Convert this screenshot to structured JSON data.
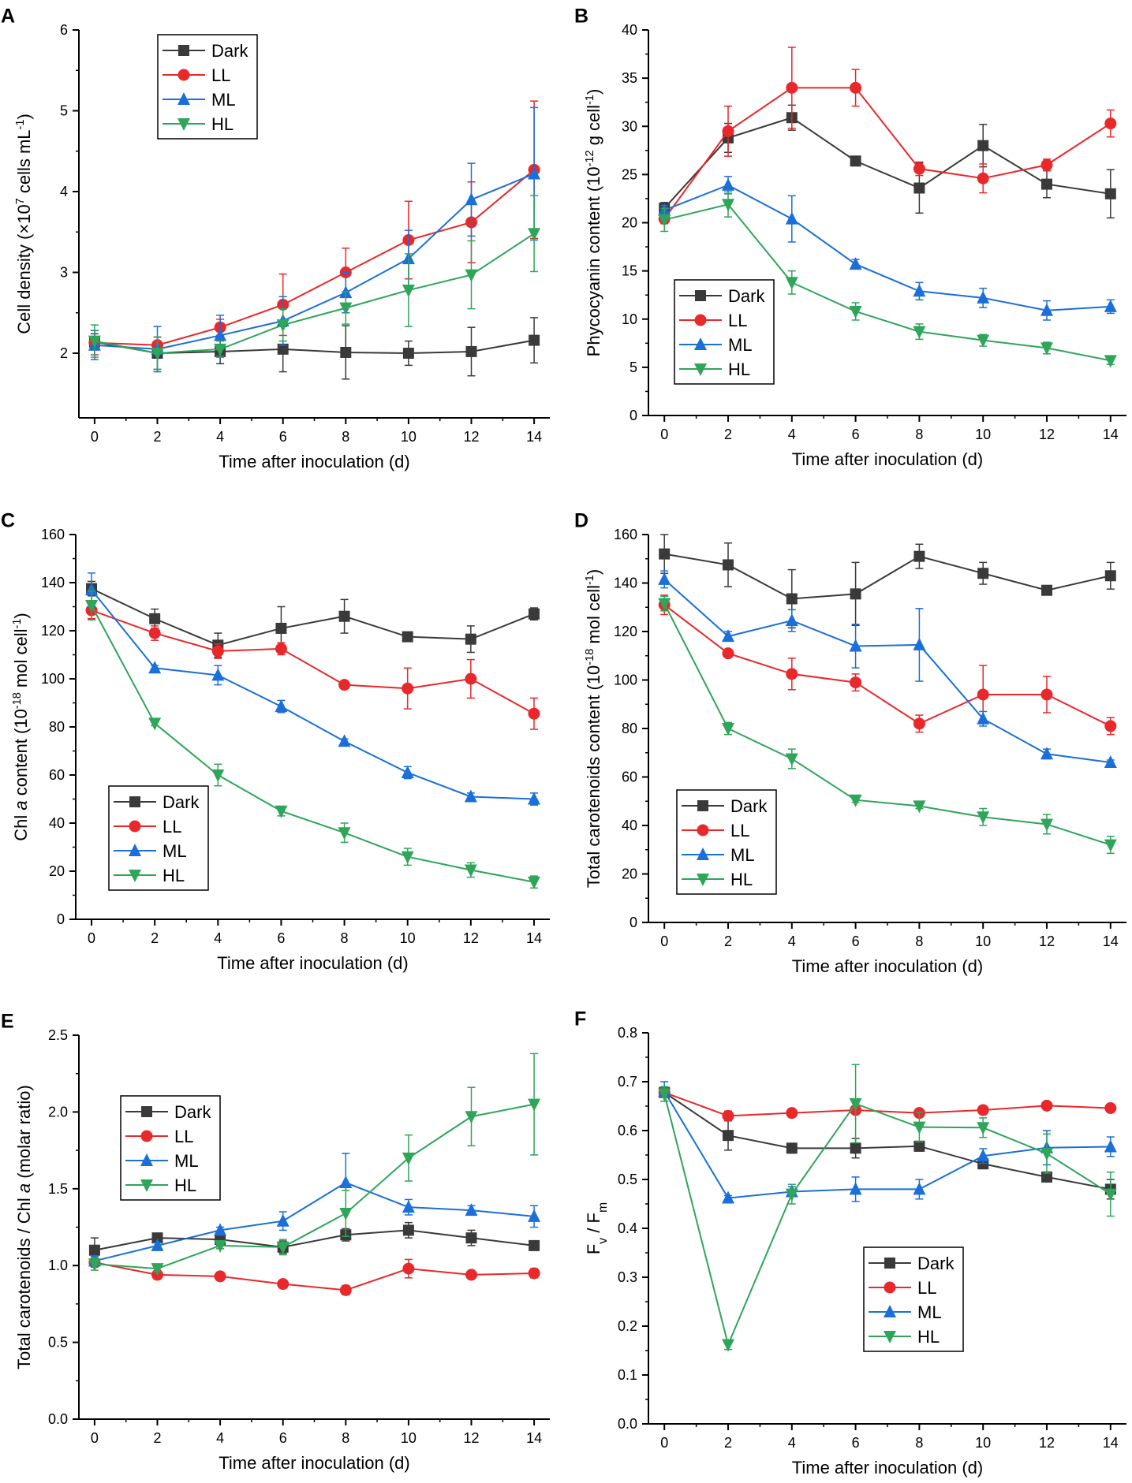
{
  "figure_title": "Six-panel growth and pigment figure",
  "colors": {
    "Dark": "#3a3a3a",
    "LL": "#e8282b",
    "ML": "#1a6fd8",
    "HL": "#2fa55a",
    "axis": "#000000"
  },
  "markers": {
    "Dark": "square",
    "LL": "circle",
    "ML": "triangle-up",
    "HL": "triangle-down"
  },
  "chart_data": [
    {
      "panel": "A",
      "type": "line",
      "xlabel": "Time after inoculation (d)",
      "ylabel_parts": [
        [
          "Cell density (×10",
          ""
        ],
        [
          "7",
          "sup"
        ],
        [
          " cells mL",
          ""
        ],
        [
          "-1",
          "sup"
        ],
        [
          ")",
          ""
        ]
      ],
      "x": [
        0,
        2,
        4,
        6,
        8,
        10,
        12,
        14
      ],
      "xlim": [
        -0.5,
        14.5
      ],
      "xticks": [
        "0",
        "2",
        "4",
        "6",
        "8",
        "10",
        "12",
        "14"
      ],
      "ylim": [
        1.2,
        6
      ],
      "yticks": [
        "2",
        "3",
        "4",
        "5",
        "6"
      ],
      "legend": {
        "placement": "top-left",
        "entries": [
          "Dark",
          "LL",
          "ML",
          "HL"
        ]
      },
      "series": [
        {
          "name": "Dark",
          "values": [
            2.14,
            2.0,
            2.02,
            2.05,
            2.01,
            2.0,
            2.02,
            2.16
          ],
          "errors": [
            0.1,
            0.2,
            0.15,
            0.28,
            0.33,
            0.15,
            0.3,
            0.28
          ]
        },
        {
          "name": "LL",
          "values": [
            2.13,
            2.1,
            2.32,
            2.6,
            3.0,
            3.4,
            3.62,
            4.27
          ],
          "errors": [
            0.15,
            0.1,
            0.1,
            0.38,
            0.3,
            0.48,
            0.5,
            0.85
          ]
        },
        {
          "name": "ML",
          "values": [
            2.1,
            2.05,
            2.22,
            2.4,
            2.75,
            3.17,
            3.9,
            4.22
          ],
          "errors": [
            0.18,
            0.28,
            0.25,
            0.3,
            0.25,
            0.35,
            0.45,
            0.82
          ]
        },
        {
          "name": "HL",
          "values": [
            2.15,
            2.0,
            2.05,
            2.35,
            2.56,
            2.78,
            2.97,
            3.48
          ],
          "errors": [
            0.2,
            0.2,
            0.1,
            0.2,
            0.2,
            0.45,
            0.42,
            0.47
          ]
        }
      ]
    },
    {
      "panel": "B",
      "type": "line",
      "xlabel": "Time after inoculation (d)",
      "ylabel_parts": [
        [
          "Phycocyanin content (10",
          ""
        ],
        [
          "-12",
          "sup"
        ],
        [
          " g cell",
          ""
        ],
        [
          "-1",
          "sup"
        ],
        [
          ")",
          ""
        ]
      ],
      "x": [
        0,
        2,
        4,
        6,
        8,
        10,
        12,
        14
      ],
      "xlim": [
        -0.5,
        14.5
      ],
      "xticks": [
        "0",
        "2",
        "4",
        "6",
        "8",
        "10",
        "12",
        "14"
      ],
      "ylim": [
        0,
        40
      ],
      "yticks": [
        "0",
        "5",
        "10",
        "15",
        "20",
        "25",
        "30",
        "35",
        "40"
      ],
      "legend": {
        "placement": "bottom-left",
        "entries": [
          "Dark",
          "LL",
          "ML",
          "HL"
        ]
      },
      "series": [
        {
          "name": "Dark",
          "values": [
            21.5,
            28.8,
            30.9,
            26.4,
            23.6,
            28.0,
            24.0,
            23.0
          ],
          "errors": [
            0.6,
            1.5,
            1.3,
            0.4,
            2.6,
            2.2,
            1.4,
            2.5
          ]
        },
        {
          "name": "LL",
          "values": [
            20.4,
            29.5,
            34.0,
            34.0,
            25.6,
            24.6,
            26.0,
            30.3
          ],
          "errors": [
            0.5,
            2.6,
            4.2,
            1.9,
            0.7,
            1.5,
            0.6,
            1.4
          ]
        },
        {
          "name": "ML",
          "values": [
            21.3,
            23.9,
            20.4,
            15.7,
            12.9,
            12.2,
            10.9,
            11.3
          ],
          "errors": [
            0.5,
            0.9,
            2.4,
            0.5,
            0.9,
            1.0,
            1.0,
            0.7
          ]
        },
        {
          "name": "HL",
          "values": [
            20.3,
            21.9,
            13.8,
            10.8,
            8.7,
            7.8,
            7.0,
            5.7
          ],
          "errors": [
            1.2,
            1.3,
            1.2,
            0.9,
            0.8,
            0.6,
            0.6,
            0.4
          ]
        }
      ]
    },
    {
      "panel": "C",
      "type": "line",
      "xlabel": "Time after inoculation (d)",
      "ylabel_parts": [
        [
          "Chl ",
          ""
        ],
        [
          "a",
          "italic"
        ],
        [
          " content (10",
          ""
        ],
        [
          "-18",
          "sup"
        ],
        [
          " mol cell",
          ""
        ],
        [
          "-1",
          "sup"
        ],
        [
          ")",
          ""
        ]
      ],
      "x": [
        0,
        2,
        4,
        6,
        8,
        10,
        12,
        14
      ],
      "xlim": [
        -0.5,
        14.5
      ],
      "xticks": [
        "0",
        "2",
        "4",
        "6",
        "8",
        "10",
        "12",
        "14"
      ],
      "ylim": [
        0,
        160
      ],
      "yticks": [
        "0",
        "20",
        "40",
        "60",
        "80",
        "100",
        "120",
        "140",
        "160"
      ],
      "legend": {
        "placement": "bottom-left",
        "entries": [
          "Dark",
          "LL",
          "ML",
          "HL"
        ]
      },
      "series": [
        {
          "name": "Dark",
          "values": [
            137.5,
            125.0,
            114.0,
            121.0,
            126.0,
            117.5,
            116.5,
            127.0
          ],
          "errors": [
            3.0,
            4.0,
            5.0,
            9.0,
            7.0,
            1.0,
            5.5,
            2.5
          ]
        },
        {
          "name": "LL",
          "values": [
            128.5,
            119.0,
            111.5,
            112.5,
            97.5,
            96.0,
            100.0,
            85.5
          ],
          "errors": [
            3.5,
            3.0,
            3.0,
            2.5,
            1.0,
            8.5,
            8.0,
            6.5
          ]
        },
        {
          "name": "ML",
          "values": [
            137.0,
            104.5,
            101.5,
            88.5,
            74.0,
            61.0,
            51.0,
            50.0
          ],
          "errors": [
            7.0,
            1.0,
            4.0,
            2.5,
            1.0,
            2.5,
            1.5,
            2.5
          ]
        },
        {
          "name": "HL",
          "values": [
            130.5,
            81.5,
            60.0,
            45.0,
            36.0,
            26.0,
            20.5,
            15.5
          ],
          "errors": [
            6.0,
            1.0,
            4.5,
            2.0,
            4.0,
            3.5,
            3.0,
            2.5
          ]
        }
      ]
    },
    {
      "panel": "D",
      "type": "line",
      "xlabel": "Time after inoculation (d)",
      "ylabel_parts": [
        [
          "Total carotenoids content (10",
          ""
        ],
        [
          "-18",
          "sup"
        ],
        [
          " mol cell",
          ""
        ],
        [
          "-1",
          "sup"
        ],
        [
          ")",
          ""
        ]
      ],
      "x": [
        0,
        2,
        4,
        6,
        8,
        10,
        12,
        14
      ],
      "xlim": [
        -0.5,
        14.5
      ],
      "xticks": [
        "0",
        "2",
        "4",
        "6",
        "8",
        "10",
        "12",
        "14"
      ],
      "ylim": [
        0,
        160
      ],
      "yticks": [
        "0",
        "20",
        "40",
        "60",
        "80",
        "100",
        "120",
        "140",
        "160"
      ],
      "legend": {
        "placement": "bottom-left",
        "entries": [
          "Dark",
          "LL",
          "ML",
          "HL"
        ]
      },
      "series": [
        {
          "name": "Dark",
          "values": [
            152.0,
            147.5,
            133.5,
            135.5,
            151.0,
            144.0,
            137.0,
            143.0
          ],
          "errors": [
            8.0,
            9.0,
            12.0,
            13.0,
            5.0,
            4.5,
            1.0,
            5.5
          ]
        },
        {
          "name": "LL",
          "values": [
            131.0,
            111.0,
            102.5,
            99.0,
            82.0,
            94.0,
            94.0,
            81.0
          ],
          "errors": [
            4.0,
            1.0,
            6.5,
            3.5,
            3.5,
            12.0,
            7.5,
            3.5
          ]
        },
        {
          "name": "ML",
          "values": [
            141.5,
            118.0,
            124.5,
            114.0,
            114.5,
            84.0,
            69.5,
            66.0
          ],
          "errors": [
            3.5,
            2.0,
            4.5,
            9.0,
            15.0,
            3.0,
            2.0,
            1.0
          ]
        },
        {
          "name": "HL",
          "values": [
            131.5,
            80.0,
            67.5,
            50.5,
            48.0,
            43.5,
            40.5,
            32.0
          ],
          "errors": [
            3.0,
            2.5,
            4.0,
            1.0,
            1.0,
            3.5,
            4.0,
            3.5
          ]
        }
      ]
    },
    {
      "panel": "E",
      "type": "line",
      "xlabel": "Time after inoculation (d)",
      "ylabel_parts": [
        [
          "Total carotenoids / Chl ",
          ""
        ],
        [
          "a",
          "italic"
        ],
        [
          " (molar ratio)",
          ""
        ]
      ],
      "x": [
        0,
        2,
        4,
        6,
        8,
        10,
        12,
        14
      ],
      "xlim": [
        -0.5,
        14.5
      ],
      "xticks": [
        "0",
        "2",
        "4",
        "6",
        "8",
        "10",
        "12",
        "14"
      ],
      "ylim": [
        0,
        2.5
      ],
      "yticks": [
        "0.0",
        "0.5",
        "1.0",
        "1.5",
        "2.0",
        "2.5"
      ],
      "legend": {
        "placement": "top-left",
        "entries": [
          "Dark",
          "LL",
          "ML",
          "HL"
        ]
      },
      "series": [
        {
          "name": "Dark",
          "values": [
            1.1,
            1.18,
            1.17,
            1.12,
            1.2,
            1.23,
            1.18,
            1.13
          ],
          "errors": [
            0.08,
            0.03,
            0.04,
            0.04,
            0.04,
            0.05,
            0.05,
            0.02
          ]
        },
        {
          "name": "LL",
          "values": [
            1.02,
            0.94,
            0.93,
            0.88,
            0.84,
            0.98,
            0.94,
            0.95
          ],
          "errors": [
            0.03,
            0.02,
            0.02,
            0.02,
            0.03,
            0.06,
            0.02,
            0.03
          ]
        },
        {
          "name": "ML",
          "values": [
            1.03,
            1.13,
            1.23,
            1.29,
            1.54,
            1.38,
            1.36,
            1.32
          ],
          "errors": [
            0.03,
            0.02,
            0.02,
            0.06,
            0.19,
            0.05,
            0.03,
            0.07
          ]
        },
        {
          "name": "HL",
          "values": [
            1.01,
            0.98,
            1.13,
            1.12,
            1.34,
            1.7,
            1.97,
            2.05
          ],
          "errors": [
            0.04,
            0.02,
            0.02,
            0.05,
            0.15,
            0.15,
            0.19,
            0.33
          ]
        }
      ]
    },
    {
      "panel": "F",
      "type": "line",
      "xlabel": "Time after inoculation (d)",
      "ylabel_parts": [
        [
          "F",
          ""
        ],
        [
          "v",
          "sub"
        ],
        [
          " / F",
          ""
        ],
        [
          "m",
          "sub"
        ]
      ],
      "x": [
        0,
        2,
        4,
        6,
        8,
        10,
        12,
        14
      ],
      "xlim": [
        -0.5,
        14.5
      ],
      "xticks": [
        "0",
        "2",
        "4",
        "6",
        "8",
        "10",
        "12",
        "14"
      ],
      "ylim": [
        0,
        0.8
      ],
      "yticks": [
        "0.0",
        "0.1",
        "0.2",
        "0.3",
        "0.4",
        "0.5",
        "0.6",
        "0.7",
        "0.8"
      ],
      "legend": {
        "placement": "bottom-center",
        "entries": [
          "Dark",
          "LL",
          "ML",
          "HL"
        ]
      },
      "series": [
        {
          "name": "Dark",
          "values": [
            0.678,
            0.59,
            0.564,
            0.564,
            0.568,
            0.532,
            0.505,
            0.48
          ],
          "errors": [
            0.01,
            0.03,
            0.01,
            0.02,
            0.01,
            0.01,
            0.01,
            0.02
          ]
        },
        {
          "name": "LL",
          "values": [
            0.678,
            0.63,
            0.636,
            0.642,
            0.636,
            0.642,
            0.651,
            0.646
          ],
          "errors": [
            0.01,
            0.01,
            0.005,
            0.005,
            0.005,
            0.005,
            0.005,
            0.005
          ]
        },
        {
          "name": "ML",
          "values": [
            0.68,
            0.462,
            0.475,
            0.48,
            0.48,
            0.548,
            0.565,
            0.567
          ],
          "errors": [
            0.02,
            0.005,
            0.01,
            0.025,
            0.02,
            0.015,
            0.035,
            0.02
          ]
        },
        {
          "name": "HL",
          "values": [
            0.675,
            0.162,
            0.47,
            0.655,
            0.607,
            0.606,
            0.553,
            0.47
          ],
          "errors": [
            0.015,
            0.01,
            0.02,
            0.08,
            0.03,
            0.02,
            0.04,
            0.045
          ]
        }
      ]
    }
  ]
}
